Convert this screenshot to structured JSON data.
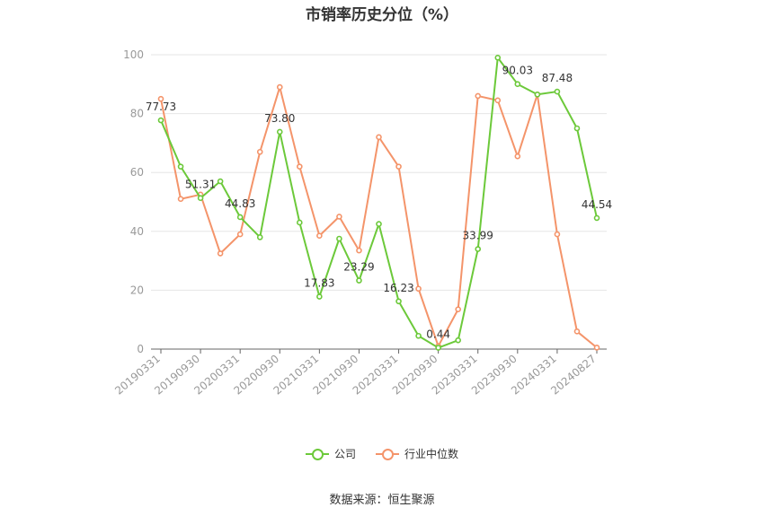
{
  "title": "市销率历史分位（%）",
  "source": "数据来源：恒生聚源",
  "colors": {
    "company": "#6cc93a",
    "industry": "#f4946a",
    "grid": "#e6e6e6",
    "axis": "#999999"
  },
  "legend": [
    {
      "label": "公司",
      "color": "#6cc93a"
    },
    {
      "label": "行业中位数",
      "color": "#f4946a"
    }
  ],
  "chart_data": {
    "type": "line",
    "title": "市销率历史分位（%）",
    "ylim": [
      0,
      100
    ],
    "yticks": [
      0,
      20,
      40,
      60,
      80,
      100
    ],
    "grid": true,
    "legend_position": "bottom",
    "x": [
      "20190331",
      "20190630",
      "20190930",
      "20191231",
      "20200331",
      "20200630",
      "20200930",
      "20201231",
      "20210331",
      "20210630",
      "20210930",
      "20211231",
      "20220331",
      "20220630",
      "20220930",
      "20221231",
      "20230331",
      "20230630",
      "20230930",
      "20231231",
      "20240331",
      "20240630",
      "20240827"
    ],
    "xtick_labels": [
      "20190331",
      "20190930",
      "20200331",
      "20200930",
      "20210331",
      "20210930",
      "20220331",
      "20220930",
      "20230331",
      "20230930",
      "20240331",
      "20240827"
    ],
    "series": [
      {
        "name": "公司",
        "color": "#6cc93a",
        "values": [
          77.73,
          62.0,
          51.31,
          57.0,
          44.83,
          38.0,
          73.8,
          43.0,
          17.83,
          37.5,
          23.29,
          42.5,
          16.23,
          4.5,
          0.44,
          3.0,
          33.99,
          99.0,
          90.03,
          86.5,
          87.48,
          75.0,
          44.54
        ],
        "labels": {
          "0": "77.73",
          "2": "51.31",
          "4": "44.83",
          "6": "73.80",
          "8": "17.83",
          "10": "23.29",
          "12": "16.23",
          "14": "0.44",
          "16": "33.99",
          "18": "90.03",
          "20": "87.48",
          "22": "44.54"
        }
      },
      {
        "name": "行业中位数",
        "color": "#f4946a",
        "values": [
          85.0,
          51.0,
          52.5,
          32.5,
          39.0,
          67.0,
          89.0,
          62.0,
          38.5,
          45.0,
          33.5,
          72.0,
          62.0,
          20.5,
          1.0,
          13.5,
          86.0,
          84.5,
          65.5,
          86.5,
          39.0,
          6.0,
          0.5
        ]
      }
    ]
  }
}
